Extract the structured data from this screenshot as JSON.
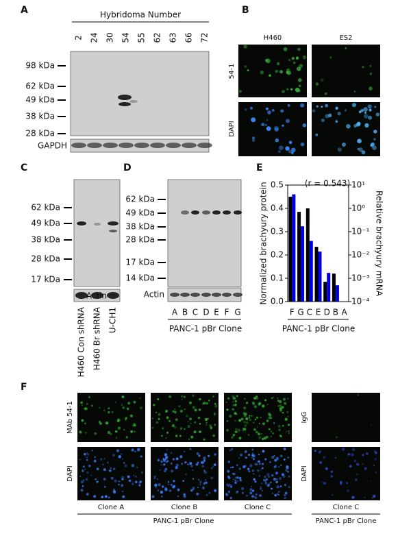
{
  "panels": {
    "a": {
      "label": "A",
      "title": "Hybridoma Number",
      "lanes": [
        "2",
        "24",
        "30",
        "54",
        "55",
        "62",
        "63",
        "66",
        "72"
      ],
      "markers": [
        "98 kDa",
        "62 kDa",
        "49 kDa",
        "38 kDa",
        "28 kDa"
      ],
      "loading": "GAPDH"
    },
    "b": {
      "label": "B",
      "columns": [
        "H460",
        "ES2"
      ],
      "rows": [
        "54-1",
        "DAPI"
      ]
    },
    "c": {
      "label": "C",
      "markers": [
        "62 kDa",
        "49 kDa",
        "38 kDa",
        "28 kDa",
        "17 kDa"
      ],
      "loading": "Actin",
      "lanes": [
        "H460 Con shRNA",
        "H460 Br shRNA",
        "U-CH1"
      ]
    },
    "d": {
      "label": "D",
      "markers": [
        "62 kDa",
        "49 kDa",
        "38 kDa",
        "28 kDa",
        "17 kDa",
        "14 kDa"
      ],
      "loading": "Actin",
      "lanes": [
        "A",
        "B",
        "C",
        "D",
        "E",
        "F",
        "G"
      ],
      "xlabel": "PANC-1 pBr Clone"
    },
    "e": {
      "label": "E"
    },
    "f": {
      "label": "F",
      "rows": [
        "MAb 54-1",
        "DAPI"
      ],
      "columns": [
        "Clone A",
        "Clone B",
        "Clone C"
      ],
      "group_label": "PANC-1 pBr Clone",
      "control": {
        "rows": [
          "IgG",
          "DAPI"
        ],
        "column": "Clone C",
        "group_label": "PANC-1 pBr Clone"
      }
    }
  },
  "chart_data": {
    "type": "bar",
    "annotation": "(r = 0.543)",
    "xlabel": "PANC-1 pBr Clone",
    "ylabel": "Normalized brachyury protein",
    "y2label": "Relative brachyury mRNA",
    "categories": [
      "F",
      "G",
      "C",
      "E",
      "D",
      "B",
      "A"
    ],
    "series": [
      {
        "color": "#000000",
        "values": [
          0.45,
          0.385,
          0.4,
          0.235,
          0.085,
          0.12,
          0
        ]
      },
      {
        "color": "#0000dd",
        "axis": "y2",
        "values": [
          4,
          0.17,
          0.04,
          0.014,
          0.0017,
          0.0005,
          null
        ]
      }
    ],
    "ylim": [
      0,
      0.5
    ],
    "yticks": [
      {
        "value": 0,
        "label": "0.0"
      },
      0.1,
      0.2,
      0.3,
      0.4,
      0.5
    ],
    "y2scale": "log",
    "y2lim": [
      0.0001,
      10
    ],
    "y2ticks": [
      {
        "value": 10,
        "label": "10¹"
      },
      {
        "value": 1,
        "label": "10⁰"
      },
      {
        "value": 0.1,
        "label": "10⁻¹"
      },
      {
        "value": 0.01,
        "label": "10⁻²"
      },
      {
        "value": 0.001,
        "label": "10⁻³"
      },
      {
        "value": 0.0001,
        "label": "10⁻⁴"
      }
    ]
  }
}
